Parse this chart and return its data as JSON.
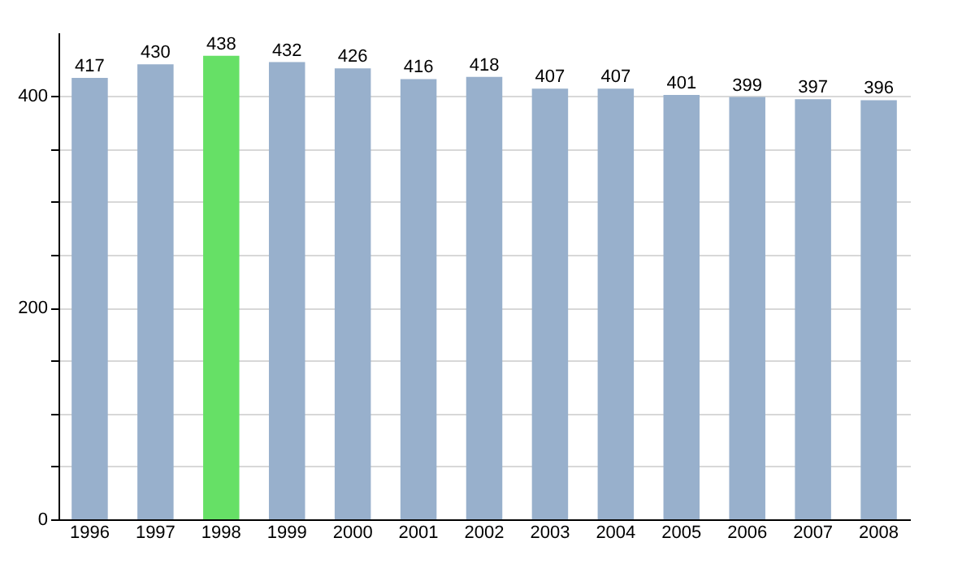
{
  "chart_data": {
    "type": "bar",
    "categories": [
      "1996",
      "1997",
      "1998",
      "1999",
      "2000",
      "2001",
      "2002",
      "2003",
      "2004",
      "2005",
      "2006",
      "2007",
      "2008"
    ],
    "values": [
      417,
      430,
      438,
      432,
      426,
      416,
      418,
      407,
      407,
      401,
      399,
      397,
      396
    ],
    "colors": [
      "#98b0cc",
      "#98b0cc",
      "#66e066",
      "#98b0cc",
      "#98b0cc",
      "#98b0cc",
      "#98b0cc",
      "#98b0cc",
      "#98b0cc",
      "#98b0cc",
      "#98b0cc",
      "#98b0cc",
      "#98b0cc"
    ],
    "ylim": [
      0,
      460
    ],
    "yticks": [
      0,
      {
        "value": 50,
        "label": null
      },
      {
        "value": 100,
        "label": null
      },
      {
        "value": 150,
        "label": null
      },
      200,
      {
        "value": 250,
        "label": null
      },
      {
        "value": 300,
        "label": null
      },
      {
        "value": 350,
        "label": null
      },
      400
    ],
    "grid": true,
    "data_labels": true
  }
}
